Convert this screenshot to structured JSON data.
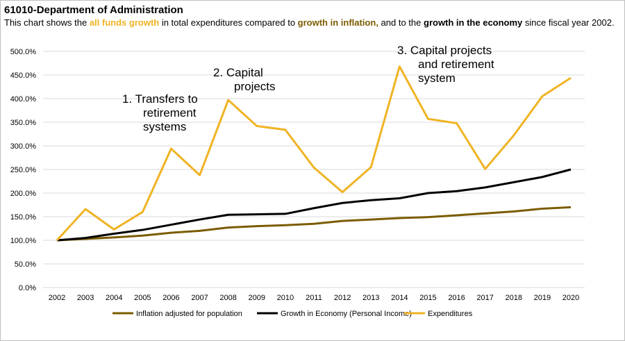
{
  "header": {
    "title": "61010-Department of Administration",
    "sub_1": "This chart shows the ",
    "sub_hl_1": "all funds growth",
    "sub_2": " in total expenditures compared to ",
    "sub_hl_2": "growth in inflation,",
    "sub_3": " and to the ",
    "sub_hl_3": "growth in the economy",
    "sub_4": " since fiscal year 2002."
  },
  "colors": {
    "expenditures": "#f0b323",
    "inflation": "#7a5c00",
    "economy": "#000000",
    "grid": "#d9d9d9"
  },
  "chart_data": {
    "type": "line",
    "x": [
      "2002",
      "2003",
      "2004",
      "2005",
      "2006",
      "2007",
      "2008",
      "2009",
      "2010",
      "2011",
      "2012",
      "2013",
      "2014",
      "2015",
      "2016",
      "2017",
      "2018",
      "2019",
      "2020"
    ],
    "ylim": [
      0,
      500
    ],
    "yticks": [
      "0.0%",
      "50.0%",
      "100.0%",
      "150.0%",
      "200.0%",
      "250.0%",
      "300.0%",
      "350.0%",
      "400.0%",
      "450.0%",
      "500.0%"
    ],
    "grid": true,
    "legend_position": "bottom",
    "series": [
      {
        "name": "Inflation adjusted for population",
        "color": "#7a5c00",
        "values": [
          100,
          103,
          106,
          110,
          116,
          120,
          127,
          130,
          132,
          135,
          141,
          144,
          147,
          149,
          153,
          157,
          161,
          167,
          170
        ]
      },
      {
        "name": "Growth in Economy (Personal Income)",
        "color": "#000000",
        "values": [
          100,
          105,
          114,
          122,
          133,
          144,
          154,
          155,
          156,
          168,
          179,
          185,
          189,
          200,
          204,
          212,
          223,
          234,
          250
        ]
      },
      {
        "name": "Expenditures",
        "color": "#f0b323",
        "values": [
          100,
          166,
          123,
          160,
          294,
          238,
          397,
          342,
          334,
          254,
          202,
          255,
          468,
          357,
          348,
          251,
          322,
          405,
          444
        ]
      }
    ],
    "annotations": [
      {
        "lines": [
          "1.   Transfers to",
          "retirement",
          "systems"
        ]
      },
      {
        "lines": [
          "2.   Capital",
          "projects"
        ]
      },
      {
        "lines": [
          "3.   Capital projects",
          "and retirement",
          "system"
        ]
      }
    ]
  }
}
